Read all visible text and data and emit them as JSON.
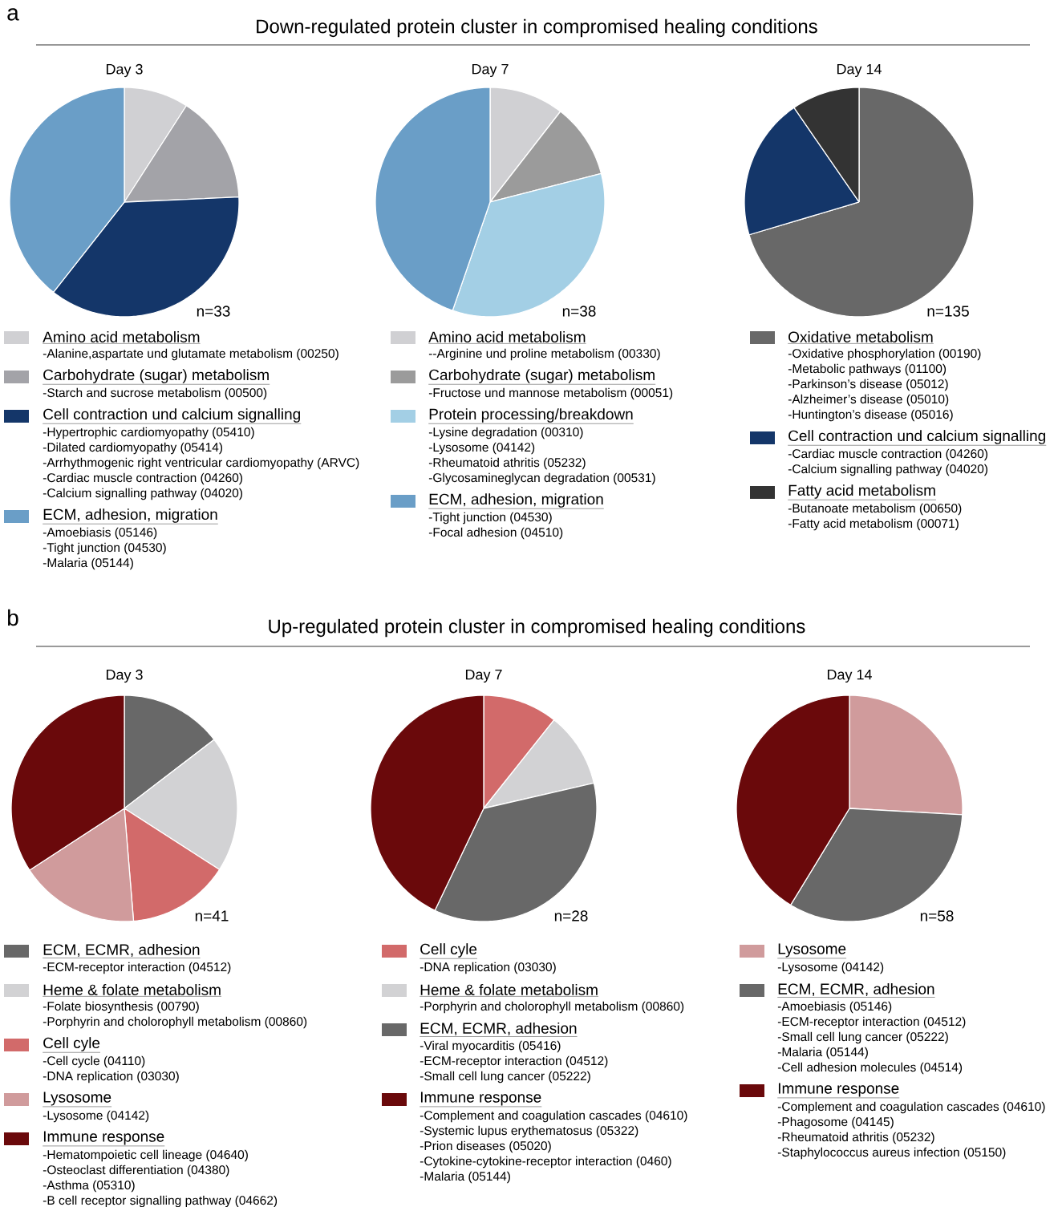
{
  "chart_data": [
    {
      "type": "other",
      "title": "Down-regulated protein cluster in compromised healing conditions",
      "annotations": [
        "a"
      ]
    },
    {
      "type": "pie",
      "title": "Day 3",
      "legend": "bottom",
      "categories": [
        "Amino acid metabolism",
        "Carbohydrate (sugar) metabolism",
        "Cell contraction und calcium signalling",
        "ECM, adhesion, migration"
      ],
      "values": [
        9.1,
        15.2,
        36.3,
        39.4
      ],
      "colors": [
        "#d0d0d3",
        "#a3a3a8",
        "#143669",
        "#6a9ec7"
      ],
      "annotations": [
        "n=33",
        {
          "text": "-Alanine,aspartate und glutamate metabolism (00250)",
          "x": "Amino acid metabolism"
        },
        {
          "text": "-Starch and sucrose metabolism (00500)",
          "x": "Carbohydrate (sugar) metabolism"
        },
        {
          "text": "-Hypertrophic cardiomyopathy (05410)",
          "x": "Cell contraction und calcium signalling"
        },
        {
          "text": "-Dilated cardiomyopathy (05414)",
          "x": "Cell contraction und calcium signalling"
        },
        {
          "text": "-Arrhythmogenic right ventricular cardiomyopathy (ARVC)",
          "x": "Cell contraction und calcium signalling"
        },
        {
          "text": "-Cardiac muscle contraction (04260)",
          "x": "Cell contraction und calcium signalling"
        },
        {
          "text": "-Calcium signalling pathway (04020)",
          "x": "Cell contraction und calcium signalling"
        },
        {
          "text": "-Amoebiasis (05146)",
          "x": "ECM, adhesion, migration"
        },
        {
          "text": "-Tight junction (04530)",
          "x": "ECM, adhesion, migration"
        },
        {
          "text": "-Malaria (05144)",
          "x": "ECM, adhesion, migration"
        }
      ]
    },
    {
      "type": "pie",
      "title": "Day 7",
      "legend": "bottom",
      "categories": [
        "Amino acid metabolism",
        "Carbohydrate (sugar) metabolism",
        "Protein processing/breakdown",
        "ECM, adhesion, migration"
      ],
      "values": [
        10.5,
        10.5,
        34.3,
        44.7
      ],
      "colors": [
        "#d0d0d3",
        "#9b9b9b",
        "#a3cfe5",
        "#6a9ec7"
      ],
      "annotations": [
        "n=38",
        {
          "text": "--Arginine und proline metabolism (00330)",
          "x": "Amino acid metabolism"
        },
        {
          "text": "-Fructose und mannose metabolism (00051)",
          "x": "Carbohydrate (sugar) metabolism"
        },
        {
          "text": "-Lysine degradation (00310)",
          "x": "Protein processing/breakdown"
        },
        {
          "text": "-Lysosome (04142)",
          "x": "Protein processing/breakdown"
        },
        {
          "text": "-Rheumatoid athritis (05232)",
          "x": "Protein processing/breakdown"
        },
        {
          "text": "-Glycosamineglycan degradation (00531)",
          "x": "Protein processing/breakdown"
        },
        {
          "text": "-Tight junction (04530)",
          "x": "ECM, adhesion, migration"
        },
        {
          "text": "-Focal adhesion (04510)",
          "x": "ECM, adhesion, migration"
        }
      ]
    },
    {
      "type": "pie",
      "title": "Day 14",
      "legend": "bottom",
      "categories": [
        "Oxidative metabolism",
        "Cell contraction und calcium signalling",
        "Fatty acid metabolism"
      ],
      "values": [
        70.4,
        20.0,
        9.6
      ],
      "colors": [
        "#686868",
        "#143669",
        "#333333"
      ],
      "annotations": [
        "n=135",
        {
          "text": "-Oxidative phosphorylation (00190)",
          "x": "Oxidative metabolism"
        },
        {
          "text": "-Metabolic pathways (01100)",
          "x": "Oxidative metabolism"
        },
        {
          "text": "-Parkinson’s disease (05012)",
          "x": "Oxidative metabolism"
        },
        {
          "text": "-Alzheimer’s disease (05010)",
          "x": "Oxidative metabolism"
        },
        {
          "text": "-Huntington’s disease (05016)",
          "x": "Oxidative metabolism"
        },
        {
          "text": "-Cardiac muscle contraction (04260)",
          "x": "Cell contraction und calcium signalling"
        },
        {
          "text": "-Calcium signalling pathway (04020)",
          "x": "Cell contraction und calcium signalling"
        },
        {
          "text": "-Butanoate metabolism (00650)",
          "x": "Fatty acid metabolism"
        },
        {
          "text": "-Fatty acid metabolism (00071)",
          "x": "Fatty acid metabolism"
        }
      ]
    },
    {
      "type": "other",
      "title": "Up-regulated protein cluster in compromised healing conditions",
      "annotations": [
        "b"
      ]
    },
    {
      "type": "pie",
      "title": "Day 3",
      "legend": "bottom",
      "categories": [
        "ECM, ECMR, adhesion",
        "Heme & folate metabolism",
        "Cell cyle",
        "Lysosome",
        "Immune response"
      ],
      "values": [
        14.6,
        19.5,
        14.6,
        17.1,
        34.2
      ],
      "colors": [
        "#686868",
        "#d2d2d4",
        "#d26a6a",
        "#d09b9c",
        "#6a090b"
      ],
      "annotations": [
        "n=41",
        {
          "text": "-ECM-receptor interaction (04512)",
          "x": "ECM, ECMR, adhesion"
        },
        {
          "text": "-Folate biosynthesis (00790)",
          "x": "Heme & folate metabolism"
        },
        {
          "text": "-Porphyrin and cholorophyll metabolism (00860)",
          "x": "Heme & folate metabolism"
        },
        {
          "text": "-Cell cycle (04110)",
          "x": "Cell cyle"
        },
        {
          "text": "-DNA replication (03030)",
          "x": "Cell cyle"
        },
        {
          "text": "-Lysosome (04142)",
          "x": "Lysosome"
        },
        {
          "text": "-Hematompoietic cell lineage (04640)",
          "x": "Immune response"
        },
        {
          "text": "-Osteoclast differentiation (04380)",
          "x": "Immune response"
        },
        {
          "text": "-Asthma (05310)",
          "x": "Immune response"
        },
        {
          "text": "-B cell receptor signalling pathway (04662)",
          "x": "Immune response"
        }
      ]
    },
    {
      "type": "pie",
      "title": "Day 7",
      "legend": "bottom",
      "categories": [
        "Cell cyle",
        "Heme & folate metabolism",
        "ECM, ECMR, adhesion",
        "Immune response"
      ],
      "values": [
        10.7,
        10.7,
        35.7,
        42.9
      ],
      "colors": [
        "#d26a6a",
        "#d2d2d4",
        "#686868",
        "#6a090b"
      ],
      "annotations": [
        "n=28",
        {
          "text": "-DNA replication (03030)",
          "x": "Cell cyle"
        },
        {
          "text": "-Porphyrin and cholorophyll metabolism (00860)",
          "x": "Heme & folate metabolism"
        },
        {
          "text": "-Viral myocarditis (05416)",
          "x": "ECM, ECMR, adhesion"
        },
        {
          "text": "-ECM-receptor interaction (04512)",
          "x": "ECM, ECMR, adhesion"
        },
        {
          "text": "-Small cell lung cancer (05222)",
          "x": "ECM, ECMR, adhesion"
        },
        {
          "text": "-Complement and coagulation cascades (04610)",
          "x": "Immune response"
        },
        {
          "text": "-Systemic lupus erythematosus (05322)",
          "x": "Immune response"
        },
        {
          "text": "-Prion diseases (05020)",
          "x": "Immune response"
        },
        {
          "text": "-Cytokine-cytokine-receptor interaction (0460)",
          "x": "Immune response"
        },
        {
          "text": "-Malaria (05144)",
          "x": "Immune response"
        }
      ]
    },
    {
      "type": "pie",
      "title": "Day 14",
      "legend": "bottom",
      "categories": [
        "Lysosome",
        "ECM, ECMR, adhesion",
        "Immune response"
      ],
      "values": [
        25.9,
        32.8,
        41.3
      ],
      "colors": [
        "#d09b9c",
        "#686868",
        "#6a090b"
      ],
      "annotations": [
        "n=58",
        {
          "text": "-Lysosome (04142)",
          "x": "Lysosome"
        },
        {
          "text": "-Amoebiasis (05146)",
          "x": "ECM, ECMR, adhesion"
        },
        {
          "text": "-ECM-receptor interaction (04512)",
          "x": "ECM, ECMR, adhesion"
        },
        {
          "text": "-Small cell lung cancer (05222)",
          "x": "ECM, ECMR, adhesion"
        },
        {
          "text": "-Malaria (05144)",
          "x": "ECM, ECMR, adhesion"
        },
        {
          "text": "-Cell adhesion molecules (04514)",
          "x": "ECM, ECMR, adhesion"
        },
        {
          "text": "-Complement and coagulation cascades (04610)",
          "x": "Immune response"
        },
        {
          "text": "-Phagosome (04145)",
          "x": "Immune response"
        },
        {
          "text": "-Rheumatoid athritis (05232)",
          "x": "Immune response"
        },
        {
          "text": "-Staphylococcus aureus infection (05150)",
          "x": "Immune response"
        }
      ]
    }
  ]
}
